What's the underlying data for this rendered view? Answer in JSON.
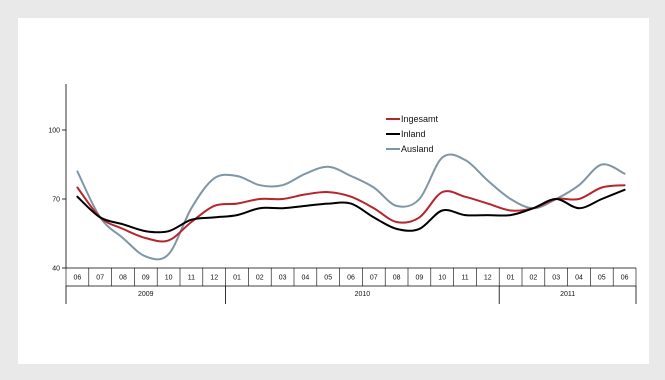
{
  "chart_data": {
    "type": "line",
    "title": "",
    "xlabel": "",
    "ylabel": "",
    "ylim": [
      40,
      120
    ],
    "yticks": [
      40,
      70,
      100
    ],
    "grid": false,
    "legend_position": "upper-center",
    "months": [
      "06",
      "07",
      "08",
      "09",
      "10",
      "11",
      "12",
      "01",
      "02",
      "03",
      "04",
      "05",
      "06",
      "07",
      "08",
      "09",
      "10",
      "11",
      "12",
      "01",
      "02",
      "03",
      "04",
      "05",
      "06"
    ],
    "years": [
      {
        "label": "2009",
        "start": 0,
        "end": 6
      },
      {
        "label": "2010",
        "start": 7,
        "end": 18
      },
      {
        "label": "2011",
        "start": 19,
        "end": 24
      }
    ],
    "series": [
      {
        "name": "Ingesamt",
        "color": "#b5262c",
        "values": [
          75,
          62,
          57,
          53,
          52,
          60,
          67,
          68,
          70,
          70,
          72,
          73,
          71,
          66,
          60,
          62,
          73,
          71,
          68,
          65,
          66,
          70,
          70,
          75,
          76
        ]
      },
      {
        "name": "Inland",
        "color": "#000000",
        "values": [
          71,
          62,
          59,
          56,
          56,
          61,
          62,
          63,
          66,
          66,
          67,
          68,
          68,
          62,
          57,
          57,
          65,
          63,
          63,
          63,
          66,
          70,
          66,
          70,
          74
        ]
      },
      {
        "name": "Ausland",
        "color": "#7f96a6",
        "values": [
          82,
          62,
          53,
          45,
          46,
          66,
          79,
          80,
          76,
          76,
          81,
          84,
          80,
          75,
          67,
          70,
          88,
          87,
          78,
          70,
          66,
          70,
          76,
          85,
          81
        ]
      }
    ]
  }
}
